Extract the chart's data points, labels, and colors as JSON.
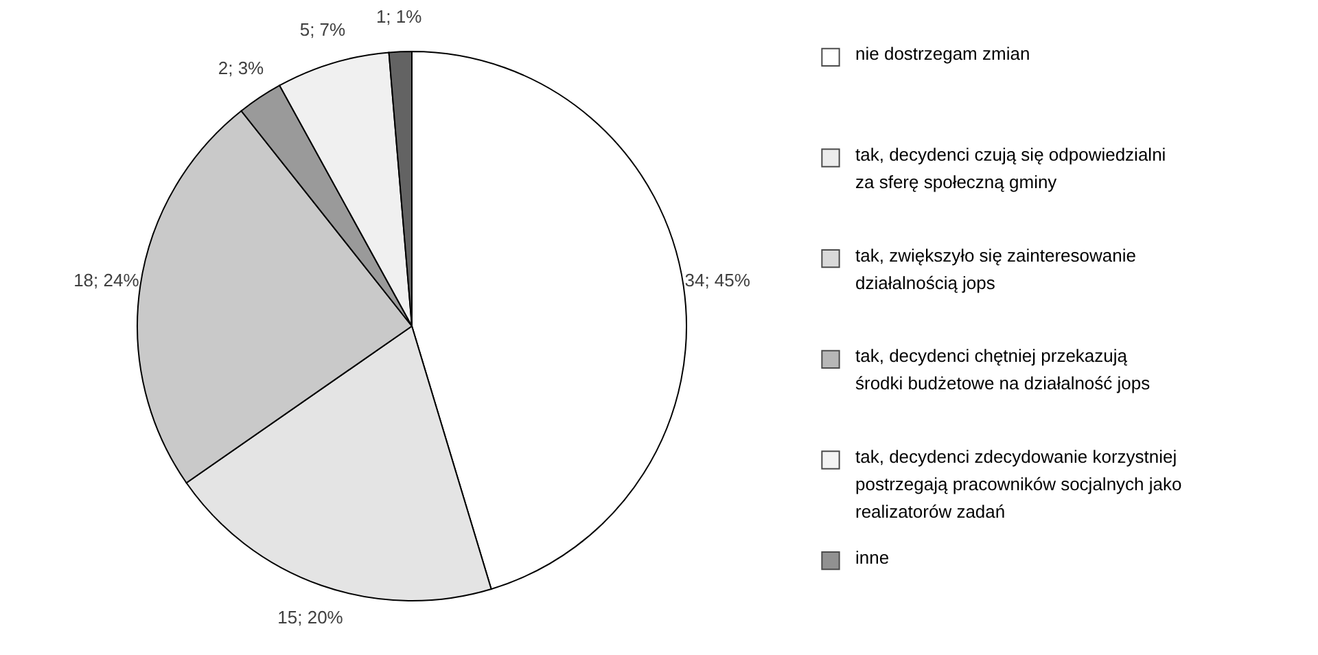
{
  "chart_data": {
    "type": "pie",
    "categories": [
      "nie dostrzegam zmian",
      "tak, decydenci czują się odpowiedzialni za sferę społeczną gminy",
      "tak, zwiększyło się zainteresowanie działalnością jops",
      "tak, decydenci chętniej przekazują środki  budżetowe na działalność jops",
      "tak, decydenci zdecydowanie korzystniej postrzegają pracowników socjalnych jako realizatorów zadań",
      "inne"
    ],
    "values": [
      34,
      15,
      18,
      2,
      5,
      1
    ],
    "value_labels": [
      "34; 45%",
      "15; 20%",
      "18; 24%",
      "2; 3%",
      "5; 7%",
      "1; 1%"
    ],
    "colors": [
      "#ffffff",
      "#e4e4e4",
      "#c9c9c9",
      "#9a9a9a",
      "#f0f0f0",
      "#636363"
    ],
    "legend": "right"
  }
}
